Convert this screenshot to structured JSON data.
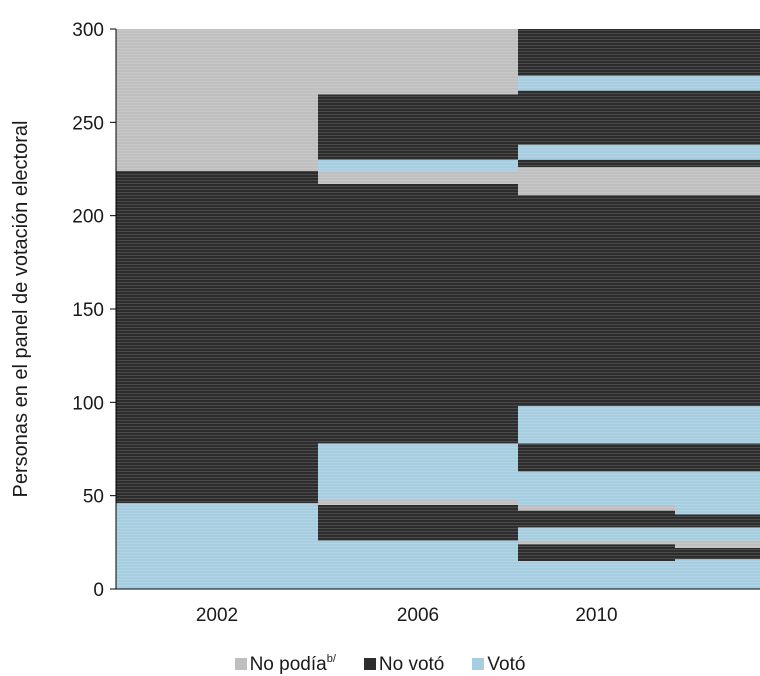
{
  "chart_data": {
    "type": "bar",
    "ylabel": "Personas en el panel de votación electoral",
    "ylim": [
      0,
      300
    ],
    "yticks": [
      0,
      50,
      100,
      150,
      200,
      250,
      300
    ],
    "categories": [
      "2002",
      "2006",
      "2010",
      ""
    ],
    "colors": {
      "No podía": "#bfbfbf",
      "No votó": "#2d2d2d",
      "Votó": "#a6cde0"
    },
    "legend_placement": "bottom",
    "legend": [
      {
        "key": "No podía",
        "label": "No podía",
        "sup": "b/",
        "color": "#bfbfbf"
      },
      {
        "key": "No votó",
        "label": "No votó",
        "sup": "",
        "color": "#2d2d2d"
      },
      {
        "key": "Votó",
        "label": "Votó",
        "sup": "",
        "color": "#a6cde0"
      }
    ],
    "columns": [
      {
        "category": "2002",
        "segments": [
          {
            "from": 0,
            "to": 46,
            "status": "Votó"
          },
          {
            "from": 46,
            "to": 224,
            "status": "No votó"
          },
          {
            "from": 224,
            "to": 300,
            "status": "No podía"
          }
        ]
      },
      {
        "category": "2006",
        "segments": [
          {
            "from": 0,
            "to": 26,
            "status": "Votó"
          },
          {
            "from": 26,
            "to": 45,
            "status": "No votó"
          },
          {
            "from": 45,
            "to": 48,
            "status": "No podía"
          },
          {
            "from": 48,
            "to": 78,
            "status": "Votó"
          },
          {
            "from": 78,
            "to": 217,
            "status": "No votó"
          },
          {
            "from": 217,
            "to": 224,
            "status": "No podía"
          },
          {
            "from": 224,
            "to": 230,
            "status": "Votó"
          },
          {
            "from": 230,
            "to": 265,
            "status": "No votó"
          },
          {
            "from": 265,
            "to": 300,
            "status": "No podía"
          }
        ]
      },
      {
        "category": "2010",
        "segments": [
          {
            "from": 0,
            "to": 15,
            "status": "Votó"
          },
          {
            "from": 15,
            "to": 24,
            "status": "No votó"
          },
          {
            "from": 24,
            "to": 26,
            "status": "No podía"
          },
          {
            "from": 26,
            "to": 33,
            "status": "Votó"
          },
          {
            "from": 33,
            "to": 42,
            "status": "No votó"
          },
          {
            "from": 42,
            "to": 45,
            "status": "No podía"
          },
          {
            "from": 45,
            "to": 63,
            "status": "Votó"
          },
          {
            "from": 63,
            "to": 78,
            "status": "No votó"
          },
          {
            "from": 78,
            "to": 98,
            "status": "Votó"
          },
          {
            "from": 98,
            "to": 211,
            "status": "No votó"
          },
          {
            "from": 211,
            "to": 226,
            "status": "No podía"
          },
          {
            "from": 226,
            "to": 230,
            "status": "No votó"
          },
          {
            "from": 230,
            "to": 238,
            "status": "Votó"
          },
          {
            "from": 238,
            "to": 267,
            "status": "No votó"
          },
          {
            "from": 267,
            "to": 275,
            "status": "Votó"
          },
          {
            "from": 275,
            "to": 300,
            "status": "No votó"
          }
        ]
      },
      {
        "category": "",
        "segments": [
          {
            "from": 0,
            "to": 16,
            "status": "Votó"
          },
          {
            "from": 16,
            "to": 22,
            "status": "No votó"
          },
          {
            "from": 22,
            "to": 26,
            "status": "No podía"
          },
          {
            "from": 26,
            "to": 33,
            "status": "Votó"
          },
          {
            "from": 33,
            "to": 40,
            "status": "No votó"
          },
          {
            "from": 40,
            "to": 63,
            "status": "Votó"
          },
          {
            "from": 63,
            "to": 78,
            "status": "No votó"
          },
          {
            "from": 78,
            "to": 98,
            "status": "Votó"
          },
          {
            "from": 98,
            "to": 211,
            "status": "No votó"
          },
          {
            "from": 211,
            "to": 226,
            "status": "No podía"
          },
          {
            "from": 226,
            "to": 230,
            "status": "No votó"
          },
          {
            "from": 230,
            "to": 238,
            "status": "Votó"
          },
          {
            "from": 238,
            "to": 267,
            "status": "No votó"
          },
          {
            "from": 267,
            "to": 275,
            "status": "Votó"
          },
          {
            "from": 275,
            "to": 300,
            "status": "No votó"
          }
        ]
      }
    ]
  }
}
